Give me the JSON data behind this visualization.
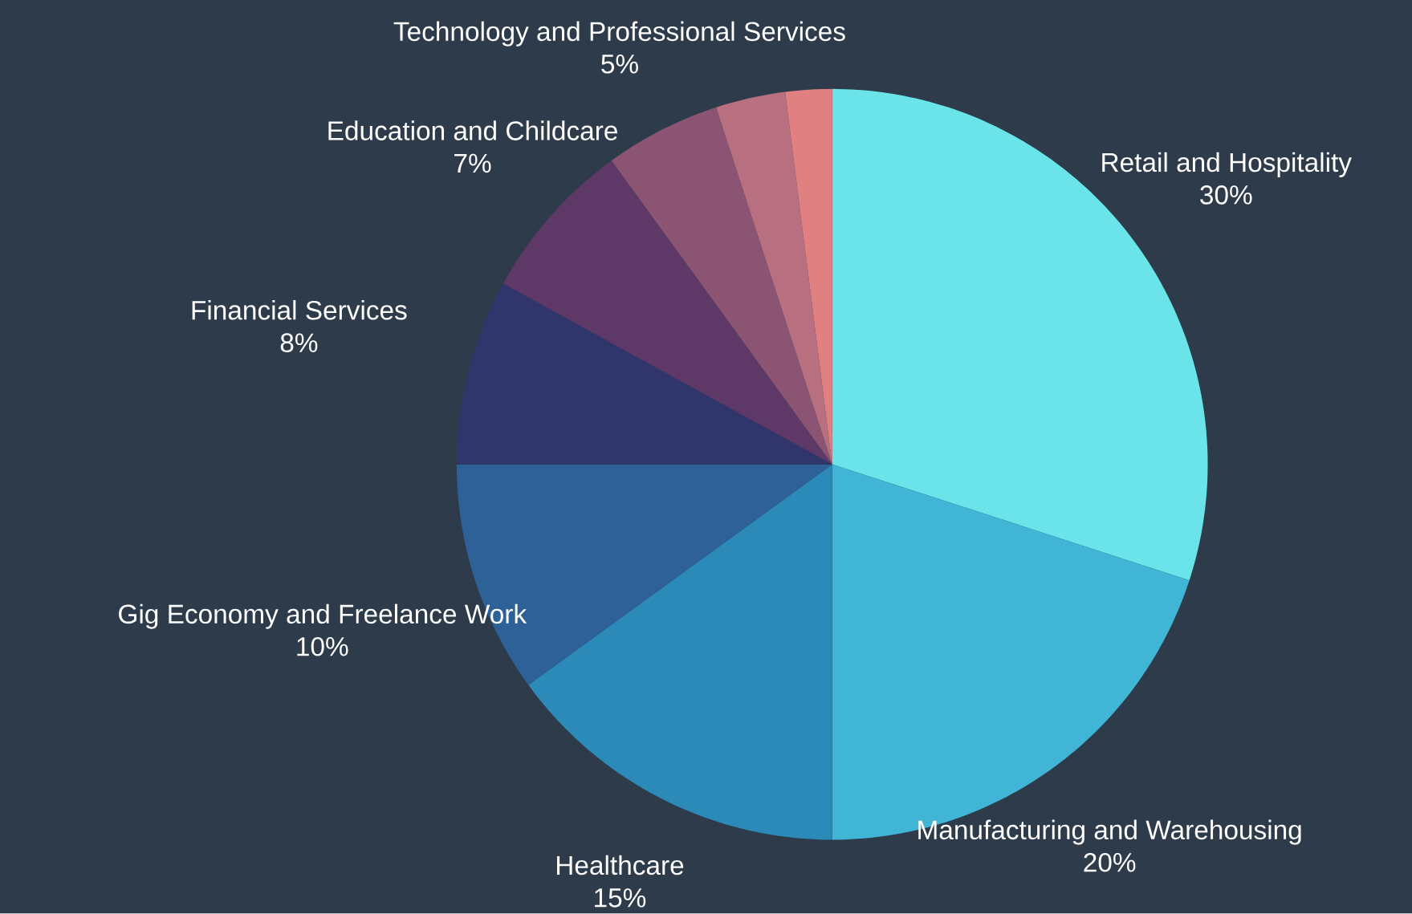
{
  "chart_data": {
    "type": "pie",
    "categories": [
      "Retail and Hospitality",
      "Manufacturing and Warehousing",
      "Healthcare",
      "Gig Economy and Freelance Work",
      "Financial Services",
      "Education and Childcare",
      "Technology and Professional Services",
      null,
      null
    ],
    "values": [
      30,
      20,
      15,
      10,
      8,
      7,
      5,
      3,
      2
    ],
    "value_labels": [
      "30%",
      "20%",
      "15%",
      "10%",
      "8%",
      "7%",
      "5%",
      null,
      null
    ],
    "colors": [
      "#6ae4e8",
      "#40b5d5",
      "#2b8ab8",
      "#2d6198",
      "#30356b",
      "#5e3867",
      "#8a5472",
      "#b87080",
      "#e08080"
    ]
  }
}
